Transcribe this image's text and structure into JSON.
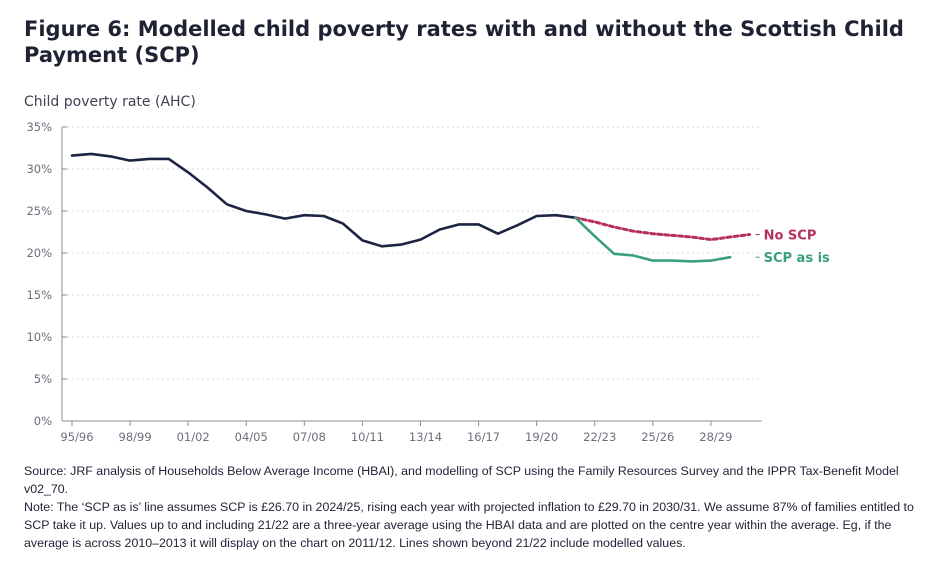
{
  "title": "Figure 6: Modelled child poverty rates with and without the Scottish Child Payment (SCP)",
  "colors": {
    "no_scp": "#b5305c",
    "scp_as_is": "#3aa07a",
    "historic": "#1b2541",
    "grid": "#d6d8dd",
    "axis": "#8a8d96"
  },
  "chart_data": {
    "type": "line",
    "title": "Figure 6: Modelled child poverty rates with and without the Scottish Child Payment (SCP)",
    "ylabel": "Child poverty rate (AHC)",
    "xlabel": "",
    "ylim": [
      0,
      0.35
    ],
    "yticks": [
      0,
      0.05,
      0.1,
      0.15,
      0.2,
      0.25,
      0.3,
      0.35
    ],
    "ytick_labels": [
      "0%",
      "5%",
      "10%",
      "15%",
      "20%",
      "25%",
      "30%",
      "35%"
    ],
    "grid": true,
    "x": [
      "95/96",
      "96/97",
      "97/98",
      "98/99",
      "99/00",
      "00/01",
      "01/02",
      "02/03",
      "03/04",
      "04/05",
      "05/06",
      "06/07",
      "07/08",
      "08/09",
      "09/10",
      "10/11",
      "11/12",
      "12/13",
      "13/14",
      "14/15",
      "15/16",
      "16/17",
      "17/18",
      "18/19",
      "19/20",
      "20/21",
      "21/22",
      "22/23",
      "23/24",
      "24/25",
      "25/26",
      "26/27",
      "27/28",
      "28/29",
      "29/30",
      "30/31"
    ],
    "xtick_labels": [
      "95/96",
      "98/99",
      "01/02",
      "04/05",
      "07/08",
      "10/11",
      "13/14",
      "16/17",
      "19/20",
      "22/23",
      "25/26",
      "28/29"
    ],
    "series": [
      {
        "name": "",
        "style": "solid",
        "values": [
          0.316,
          0.318,
          0.315,
          0.31,
          0.312,
          0.312,
          0.296,
          0.278,
          0.258,
          0.25,
          0.246,
          0.241,
          0.245,
          0.244,
          0.235,
          0.215,
          0.208,
          0.21,
          0.216,
          0.228,
          0.234,
          0.234,
          0.223,
          0.233,
          0.244,
          0.245,
          0.242,
          null,
          null,
          null,
          null,
          null,
          null,
          null,
          null,
          null
        ]
      },
      {
        "name": "No SCP",
        "style": "dashed",
        "values": [
          null,
          null,
          null,
          null,
          null,
          null,
          null,
          null,
          null,
          null,
          null,
          null,
          null,
          null,
          null,
          null,
          null,
          null,
          null,
          null,
          null,
          null,
          null,
          null,
          null,
          null,
          0.242,
          0.237,
          0.231,
          0.226,
          0.223,
          0.221,
          0.219,
          0.216,
          0.219,
          0.222
        ]
      },
      {
        "name": "SCP as is",
        "style": "solid",
        "values": [
          null,
          null,
          null,
          null,
          null,
          null,
          null,
          null,
          null,
          null,
          null,
          null,
          null,
          null,
          null,
          null,
          null,
          null,
          null,
          null,
          null,
          null,
          null,
          null,
          null,
          null,
          0.242,
          0.22,
          0.199,
          0.197,
          0.191,
          0.191,
          0.19,
          0.191,
          0.195,
          null
        ]
      }
    ]
  },
  "notes": {
    "source": "Source: JRF analysis of Households Below Average Income (HBAI), and modelling of SCP using the Family Resources Survey and the IPPR Tax-Benefit Model v02_70.",
    "note": "Note: The ‘SCP as is’ line assumes SCP is £26.70 in 2024/25, rising each year with projected inflation to £29.70 in 2030/31. We assume 87% of families entitled to SCP take it up. Values up to and including 21/22 are a three-year average using the HBAI data and are plotted on the centre year within the average. Eg, if the average is across 2010–2013 it will display on the chart on 2011/12. Lines shown beyond 21/22 include modelled values."
  }
}
